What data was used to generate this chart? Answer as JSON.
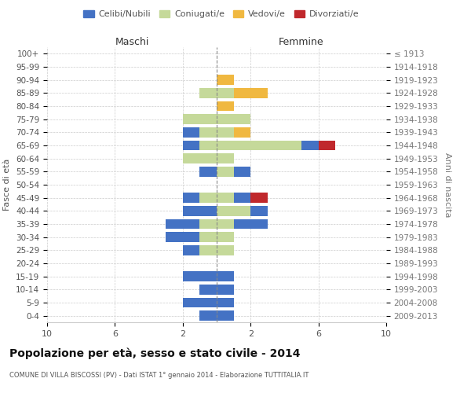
{
  "age_groups": [
    "0-4",
    "5-9",
    "10-14",
    "15-19",
    "20-24",
    "25-29",
    "30-34",
    "35-39",
    "40-44",
    "45-49",
    "50-54",
    "55-59",
    "60-64",
    "65-69",
    "70-74",
    "75-79",
    "80-84",
    "85-89",
    "90-94",
    "95-99",
    "100+"
  ],
  "birth_years": [
    "2009-2013",
    "2004-2008",
    "1999-2003",
    "1994-1998",
    "1989-1993",
    "1984-1988",
    "1979-1983",
    "1974-1978",
    "1969-1973",
    "1964-1968",
    "1959-1963",
    "1954-1958",
    "1949-1953",
    "1944-1948",
    "1939-1943",
    "1934-1938",
    "1929-1933",
    "1924-1928",
    "1919-1923",
    "1914-1918",
    "≤ 1913"
  ],
  "maschi": {
    "celibi": [
      1,
      2,
      1,
      2,
      0,
      1,
      2,
      2,
      2,
      1,
      0,
      1,
      0,
      1,
      1,
      0,
      0,
      0,
      0,
      0,
      0
    ],
    "coniugati": [
      0,
      0,
      0,
      0,
      0,
      1,
      1,
      1,
      0,
      1,
      0,
      0,
      2,
      1,
      1,
      2,
      0,
      1,
      0,
      0,
      0
    ],
    "vedovi": [
      0,
      0,
      0,
      0,
      0,
      0,
      0,
      0,
      0,
      0,
      0,
      0,
      0,
      0,
      0,
      0,
      0,
      0,
      0,
      0,
      0
    ],
    "divorziati": [
      0,
      0,
      0,
      0,
      0,
      0,
      0,
      0,
      0,
      0,
      0,
      0,
      0,
      0,
      0,
      0,
      0,
      0,
      0,
      0,
      0
    ]
  },
  "femmine": {
    "nubili": [
      1,
      1,
      1,
      1,
      0,
      0,
      0,
      2,
      1,
      1,
      0,
      1,
      0,
      1,
      0,
      0,
      0,
      0,
      0,
      0,
      0
    ],
    "coniugate": [
      0,
      0,
      0,
      0,
      0,
      1,
      1,
      1,
      2,
      1,
      0,
      1,
      1,
      5,
      1,
      2,
      0,
      1,
      0,
      0,
      0
    ],
    "vedove": [
      0,
      0,
      0,
      0,
      0,
      0,
      0,
      0,
      0,
      0,
      0,
      0,
      0,
      0,
      1,
      0,
      1,
      2,
      1,
      0,
      0
    ],
    "divorziate": [
      0,
      0,
      0,
      0,
      0,
      0,
      0,
      0,
      0,
      1,
      0,
      0,
      0,
      1,
      0,
      0,
      0,
      0,
      0,
      0,
      0
    ]
  },
  "colors": {
    "celibi_nubili": "#4472c4",
    "coniugati": "#c5d99a",
    "vedovi": "#f0b840",
    "divorziati": "#c0282c"
  },
  "title": "Popolazione per età, sesso e stato civile - 2014",
  "subtitle": "COMUNE DI VILLA BISCOSSI (PV) - Dati ISTAT 1° gennaio 2014 - Elaborazione TUTTITALIA.IT",
  "xlabel_left": "Maschi",
  "xlabel_right": "Femmine",
  "ylabel_left": "Fasce di età",
  "ylabel_right": "Anni di nascita",
  "xlim": 10,
  "xticks": [
    -10,
    -6,
    -2,
    2,
    6,
    10
  ],
  "xticklabels": [
    "10",
    "6",
    "2",
    "2",
    "6",
    "10"
  ],
  "legend_labels": [
    "Celibi/Nubili",
    "Coniugati/e",
    "Vedovi/e",
    "Divorziati/e"
  ],
  "bg_color": "#ffffff",
  "grid_color": "#cccccc"
}
